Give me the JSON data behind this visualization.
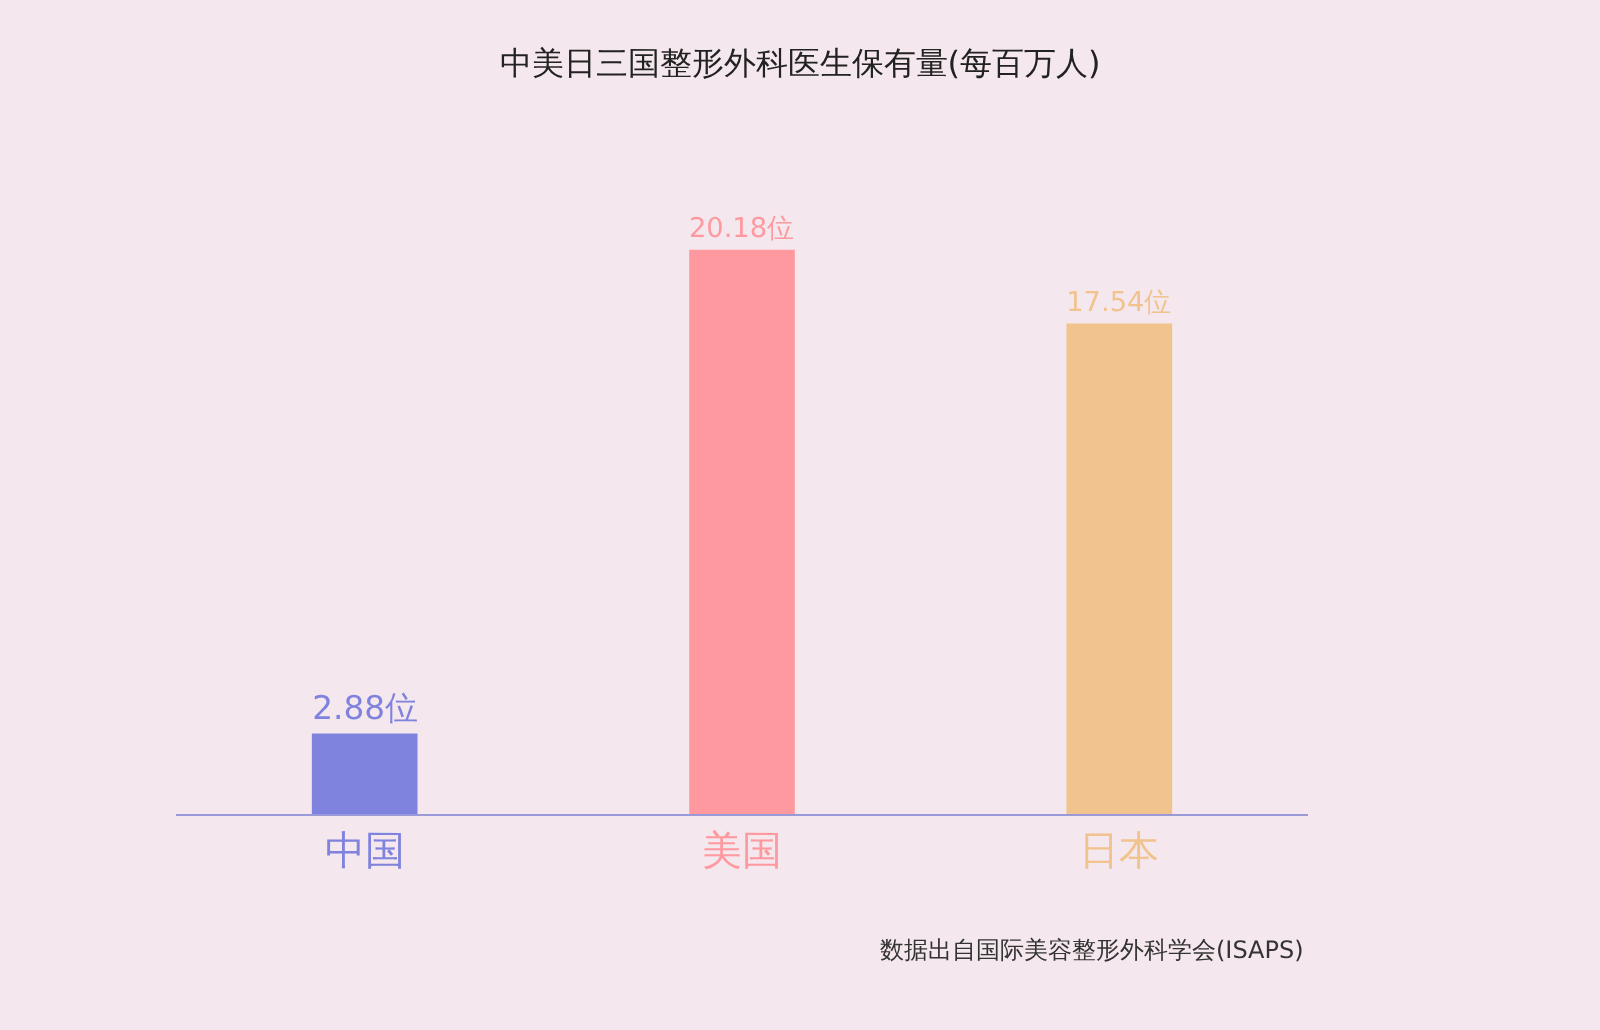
{
  "chart_data": {
    "type": "bar",
    "title": "中美日三国整形外科医生保有量(每百万人)",
    "categories": [
      "中国",
      "美国",
      "日本"
    ],
    "values": [
      2.88,
      20.18,
      17.54
    ],
    "value_labels": [
      "2.88位",
      "20.18位",
      "17.54位"
    ],
    "colors": [
      "#7f83dd",
      "#fe9a9f",
      "#f1c38f"
    ],
    "annotations": [
      "数据出自国际美容整形外科学会(ISAPS)"
    ]
  }
}
